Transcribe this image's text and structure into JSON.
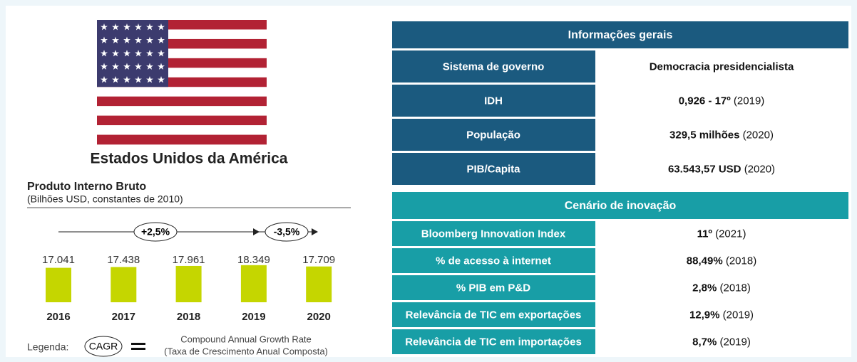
{
  "country": "Estados Unidos da América",
  "chart_data": {
    "type": "bar",
    "title": "Produto Interno Bruto",
    "subtitle": "(Bilhões USD, constantes de 2010)",
    "categories": [
      "2016",
      "2017",
      "2018",
      "2019",
      "2020"
    ],
    "values": [
      17041,
      17438,
      17961,
      18349,
      17709
    ],
    "value_labels": [
      "17.041",
      "17.438",
      "17.961",
      "18.349",
      "17.709"
    ],
    "color": "#c5d600",
    "ylim": [
      0,
      19000
    ],
    "annotations": [
      "+2,5%",
      "-3,5%"
    ],
    "legend": {
      "label": "Legenda:",
      "key": "CAGR",
      "text": "Compound Annual Growth Rate",
      "subtext": "(Taxa de Crescimento Anual Composta)"
    }
  },
  "general": {
    "title": "Informações gerais",
    "rows": [
      [
        "Sistema de governo",
        "Democracia presidencialista",
        null
      ],
      [
        "IDH",
        "0,926 - 17º",
        "(2019)"
      ],
      [
        "População",
        "329,5 milhões",
        "(2020)"
      ],
      [
        "PIB/Capita",
        "63.543,57 USD",
        "(2020)"
      ]
    ]
  },
  "innovation": {
    "title": "Cenário de inovação",
    "rows": [
      [
        "Bloomberg Innovation Index",
        "11º",
        "(2021)"
      ],
      [
        "% de acesso à internet",
        "88,49%",
        "(2018)"
      ],
      [
        "% PIB em P&D",
        "2,8%",
        "(2018)"
      ],
      [
        "Relevância de TIC em exportações",
        "12,9%",
        "(2019)"
      ],
      [
        "Relevância de TIC em importações",
        "8,7%",
        "(2019)"
      ]
    ]
  }
}
